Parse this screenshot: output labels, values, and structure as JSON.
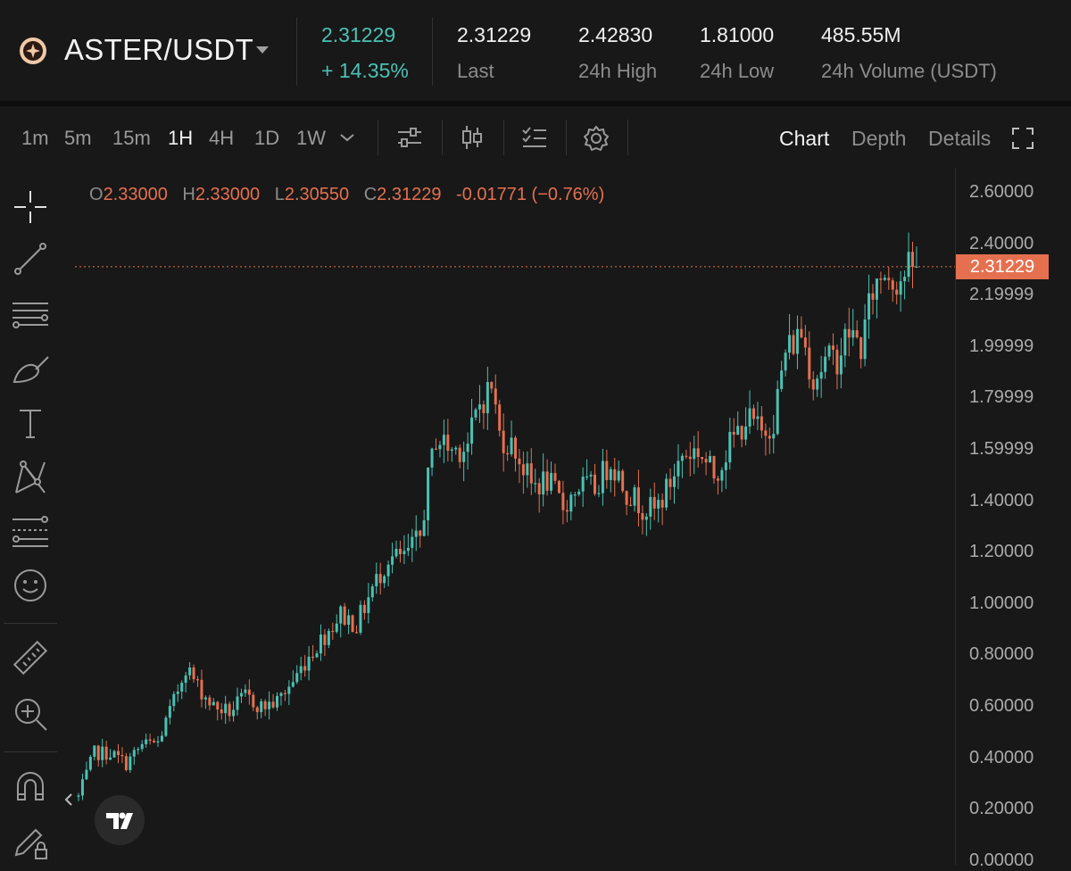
{
  "header": {
    "pair": "ASTER/USDT",
    "price": "2.31229",
    "change": "+ 14.35%",
    "stats": [
      {
        "value": "2.31229",
        "label": "Last"
      },
      {
        "value": "2.42830",
        "label": "24h High"
      },
      {
        "value": "1.81000",
        "label": "24h Low"
      },
      {
        "value": "485.55M",
        "label": "24h Volume (USDT)"
      }
    ]
  },
  "toolbar": {
    "timeframes": [
      "1m",
      "5m",
      "15m",
      "1H",
      "4H",
      "1D",
      "1W"
    ],
    "active_timeframe": "1H",
    "view_tabs": [
      "Chart",
      "Depth",
      "Details"
    ],
    "active_view": "Chart",
    "icons": [
      "indicator-settings-icon",
      "candle-type-icon",
      "checklist-icon",
      "gear-icon",
      "fullscreen-icon"
    ]
  },
  "left_tools": [
    "crosshair-icon",
    "trendline-icon",
    "horizontal-lines-icon",
    "brush-icon",
    "text-icon",
    "pattern-icon",
    "fib-icon",
    "emoji-icon",
    "ruler-icon",
    "zoom-in-icon",
    "magnet-icon",
    "lock-pencil-icon"
  ],
  "ohlc": {
    "o_label": "O",
    "o": "2.33000",
    "h_label": "H",
    "h": "2.33000",
    "l_label": "L",
    "l": "2.30550",
    "c_label": "C",
    "c": "2.31229",
    "change": "-0.01771 (−0.76%)"
  },
  "colors": {
    "up": "#4bc1b3",
    "down": "#e5704f",
    "background": "#181818"
  },
  "chart_data": {
    "type": "candlestick",
    "y_ticks": [
      "2.60000",
      "2.40000",
      "2.19999",
      "1.99999",
      "1.79999",
      "1.59999",
      "1.40000",
      "1.20000",
      "1.00000",
      "0.80000",
      "0.60000",
      "0.40000",
      "0.20000",
      "0.00000"
    ],
    "ylim": [
      0,
      2.6
    ],
    "last_price_label": "2.31229",
    "last_price": 2.31229,
    "keypoints": [
      [
        0,
        0.25
      ],
      [
        4,
        0.42
      ],
      [
        8,
        0.42
      ],
      [
        12,
        0.38
      ],
      [
        16,
        0.45
      ],
      [
        20,
        0.46
      ],
      [
        24,
        0.62
      ],
      [
        27,
        0.76
      ],
      [
        30,
        0.68
      ],
      [
        34,
        0.6
      ],
      [
        38,
        0.58
      ],
      [
        42,
        0.64
      ],
      [
        46,
        0.6
      ],
      [
        50,
        0.62
      ],
      [
        54,
        0.7
      ],
      [
        58,
        0.8
      ],
      [
        62,
        0.88
      ],
      [
        66,
        0.96
      ],
      [
        70,
        0.92
      ],
      [
        74,
        1.06
      ],
      [
        78,
        1.18
      ],
      [
        82,
        1.18
      ],
      [
        86,
        1.26
      ],
      [
        88,
        1.48
      ],
      [
        90,
        1.65
      ],
      [
        94,
        1.6
      ],
      [
        98,
        1.62
      ],
      [
        101,
        1.78
      ],
      [
        104,
        1.85
      ],
      [
        106,
        1.66
      ],
      [
        110,
        1.6
      ],
      [
        114,
        1.46
      ],
      [
        118,
        1.48
      ],
      [
        122,
        1.38
      ],
      [
        126,
        1.46
      ],
      [
        130,
        1.45
      ],
      [
        134,
        1.56
      ],
      [
        138,
        1.44
      ],
      [
        142,
        1.38
      ],
      [
        145,
        1.36
      ],
      [
        148,
        1.44
      ],
      [
        152,
        1.58
      ],
      [
        156,
        1.6
      ],
      [
        160,
        1.5
      ],
      [
        164,
        1.62
      ],
      [
        168,
        1.72
      ],
      [
        170,
        1.7
      ],
      [
        172,
        1.66
      ],
      [
        175,
        1.72
      ],
      [
        178,
        1.98
      ],
      [
        182,
        2.06
      ],
      [
        185,
        1.88
      ],
      [
        188,
        1.94
      ],
      [
        191,
        1.96
      ],
      [
        194,
        2.06
      ],
      [
        197,
        2.0
      ],
      [
        200,
        2.22
      ],
      [
        203,
        2.3
      ],
      [
        206,
        2.26
      ],
      [
        209,
        2.3
      ],
      [
        211,
        2.31
      ]
    ]
  }
}
